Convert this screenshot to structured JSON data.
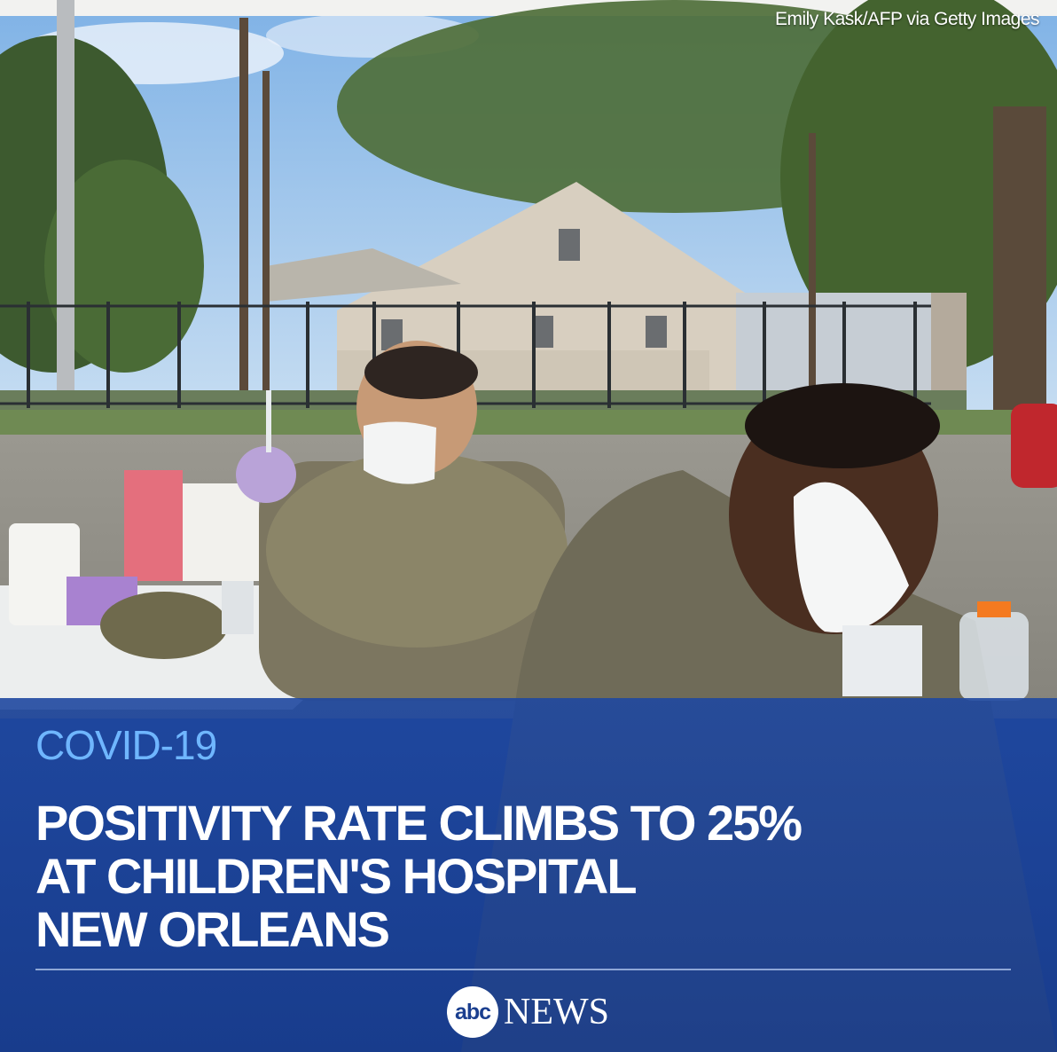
{
  "photo": {
    "credit": "Emily Kask/AFP via Getty Images"
  },
  "story": {
    "topic": "COVID-19",
    "headline_lines": [
      "POSITIVITY RATE CLIMBS TO 25%",
      "AT CHILDREN'S HOSPITAL",
      "NEW ORLEANS"
    ]
  },
  "brand": {
    "logo_text": "abc",
    "wordmark": "NEWS"
  },
  "colors": {
    "band": "#1b3f8f",
    "topic": "#6fb6ff",
    "headline": "#ffffff"
  }
}
